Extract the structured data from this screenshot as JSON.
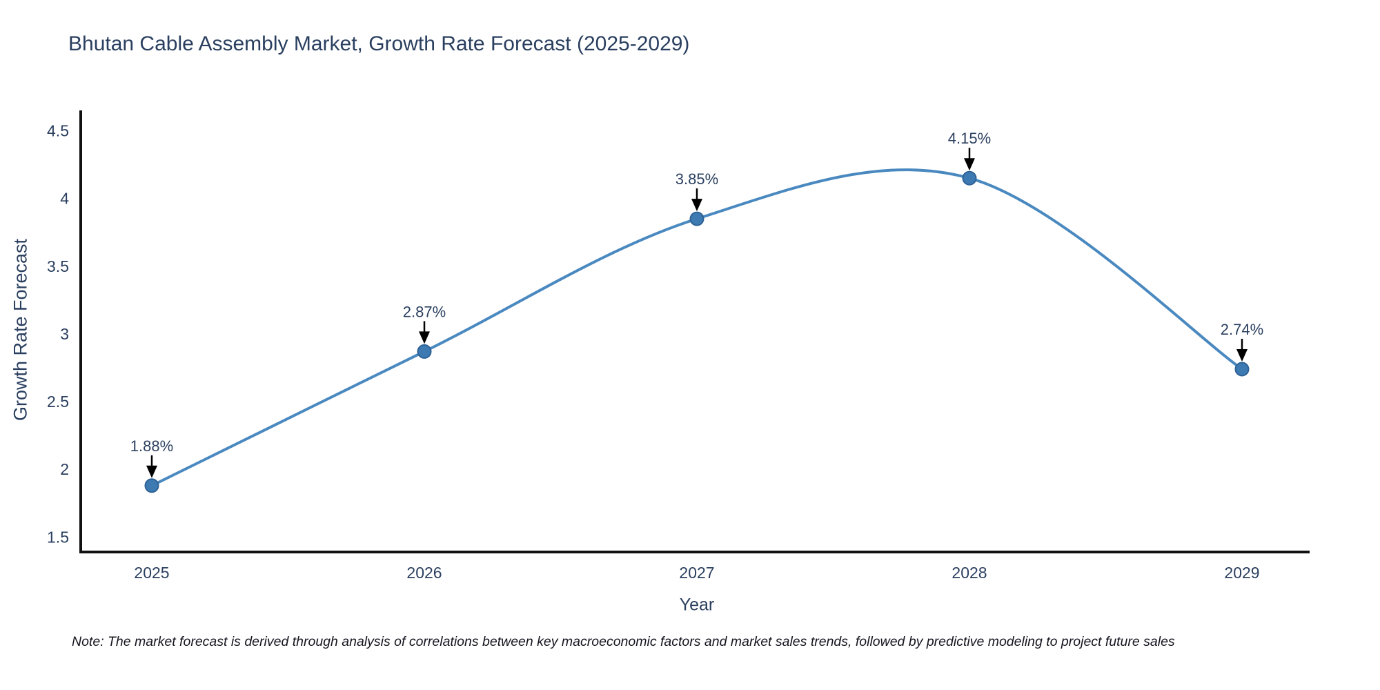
{
  "header": {
    "title": "Bhutan Cable Assembly Market, Growth Rate Forecast (2025-2029)"
  },
  "chart_data": {
    "type": "line",
    "title": "Bhutan Cable Assembly Market, Growth Rate Forecast (2025-2029)",
    "xlabel": "Year",
    "ylabel": "Growth Rate Forecast",
    "categories": [
      "2025",
      "2026",
      "2027",
      "2028",
      "2029"
    ],
    "series": [
      {
        "name": "Growth Rate Forecast",
        "values": [
          1.88,
          2.87,
          3.85,
          4.15,
          2.74
        ]
      }
    ],
    "annotations": [
      "1.88%",
      "2.87%",
      "3.85%",
      "4.15%",
      "2.74%"
    ],
    "yticks": [
      1.5,
      2,
      2.5,
      3,
      3.5,
      4,
      4.5
    ],
    "ylim": [
      1.39,
      4.65
    ],
    "line_shape": "spline",
    "grid": false,
    "legend_position": "none",
    "colors": {
      "line": "#4a89c0",
      "marker_fill": "#3d7ab2",
      "marker_edge": "#2e6296",
      "axis": "#111111",
      "text": "#2a3f5f",
      "arrow": "#000000"
    }
  },
  "footnote": {
    "text": "Note: The market forecast is derived through analysis of correlations between key macroeconomic factors and market sales trends, followed by predictive modeling to project future sales"
  }
}
